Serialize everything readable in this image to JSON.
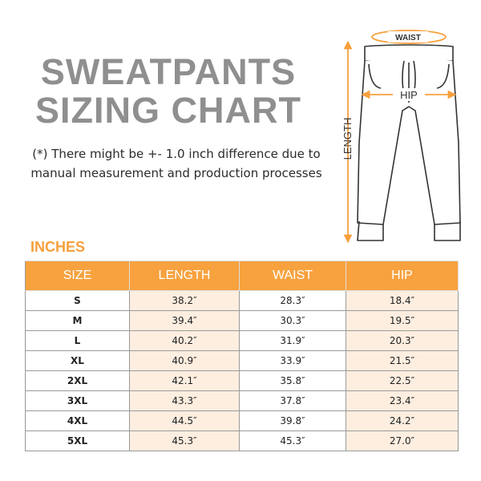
{
  "title": {
    "line1": "SWEATPANTS",
    "line2": "SIZING CHART"
  },
  "note": {
    "line1": "(*) There might be +- 1.0 inch difference due to",
    "line2": "manual measurement and production processes"
  },
  "diagram": {
    "waist_label": "WAIST",
    "hip_label": "HIP",
    "length_label": "LENGTH",
    "accent_color": "#f6a03c"
  },
  "units_label": "INCHES",
  "table": {
    "headers": [
      "SIZE",
      "LENGTH",
      "WAIST",
      "HIP"
    ],
    "rows": [
      [
        "S",
        "38.2″",
        "28.3″",
        "18.4″"
      ],
      [
        "M",
        "39.4″",
        "30.3″",
        "19.5″"
      ],
      [
        "L",
        "40.2″",
        "31.9″",
        "20.3″"
      ],
      [
        "XL",
        "40.9″",
        "33.9″",
        "21.5″"
      ],
      [
        "2XL",
        "42.1″",
        "35.8″",
        "22.5″"
      ],
      [
        "3XL",
        "43.3″",
        "37.8″",
        "23.4″"
      ],
      [
        "4XL",
        "44.5″",
        "39.8″",
        "24.2″"
      ],
      [
        "5XL",
        "45.3″",
        "45.3″",
        "27.0″"
      ]
    ]
  },
  "colors": {
    "header_bg": "#f7a23f",
    "title_gray": "#8f8f8f",
    "alt_cell": "#fdeee0"
  }
}
